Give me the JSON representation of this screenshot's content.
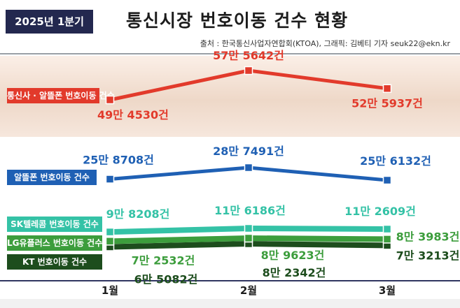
{
  "header": {
    "badge": "2025년 1분기",
    "title": "통신시장 번호이동 건수 현황",
    "source": "출처 : 한국통신사업자연합회(KTOA), 그래픽: 김베티 기자 seuk22@ekn.kr"
  },
  "colors": {
    "badge_bg": "#23284f",
    "red": "#e23a2b",
    "blue": "#1f60b4",
    "sk": "#34c2a6",
    "lg": "#3c9d3c",
    "kt": "#1d4d1d",
    "axis": "#2f3560"
  },
  "chart_data": {
    "type": "line",
    "categories": [
      "1월",
      "2월",
      "3월"
    ],
    "series": [
      {
        "name": "통신사 · 알뜰폰 번호이동 건수",
        "values": [
          494530,
          575642,
          525937
        ],
        "labels": [
          "49만 4530건",
          "57만 5642건",
          "52만 5937건"
        ],
        "color": "#e23a2b"
      },
      {
        "name": "알뜰폰 번호이동 건수",
        "values": [
          258708,
          287491,
          256132
        ],
        "labels": [
          "25만 8708건",
          "28만 7491건",
          "25만 6132건"
        ],
        "color": "#1f60b4"
      },
      {
        "name": "SK텔레콤 번호이동 건수",
        "values": [
          98208,
          116186,
          112609
        ],
        "labels": [
          "9만 8208건",
          "11만 6186건",
          "11만 2609건"
        ],
        "color": "#34c2a6"
      },
      {
        "name": "LG유플러스 번호이동 건수",
        "values": [
          72532,
          89623,
          83983
        ],
        "labels": [
          "7만 2532건",
          "8만 9623건",
          "8만 3983건"
        ],
        "color": "#3c9d3c"
      },
      {
        "name": "KT 번호이동 건수",
        "values": [
          65082,
          82342,
          73213
        ],
        "labels": [
          "6만 5082건",
          "8만 2342건",
          "7만 3213건"
        ],
        "color": "#1d4d1d"
      }
    ]
  }
}
